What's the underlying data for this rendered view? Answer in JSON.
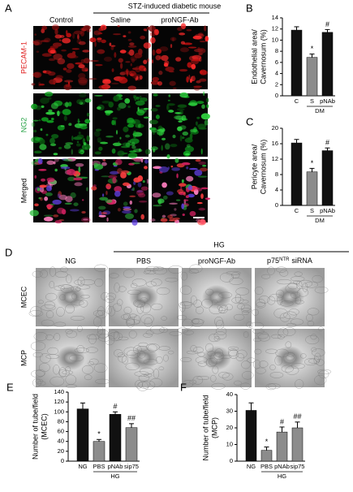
{
  "panel_a": {
    "label": "A",
    "group_header": "STZ-induced diabetic mouse",
    "columns": [
      "Control",
      "Saline",
      "proNGF-Ab"
    ],
    "rows": [
      "PECAM-1",
      "NG2",
      "Merged"
    ]
  },
  "panel_d": {
    "label": "D",
    "group_header": "HG",
    "columns": [
      "NG",
      "PBS",
      "proNGF-Ab"
    ],
    "last_column": {
      "base": "p75",
      "sup": "NTR",
      "rest": "siRNA"
    },
    "rows": [
      "MCEC",
      "MCP"
    ]
  },
  "chart_data": [
    {
      "type": "bar",
      "panel": "B",
      "ylabel": [
        "Endothelial area/",
        "Cavernosum (%)"
      ],
      "categories": [
        "C",
        "S",
        "pNAb"
      ],
      "values": [
        11.8,
        6.9,
        11.4
      ],
      "errors": [
        0.6,
        0.6,
        0.5
      ],
      "colors": [
        "#111111",
        "#8c8c8c",
        "#111111"
      ],
      "annotations": [
        null,
        "*",
        "#"
      ],
      "group_label": "DM",
      "ylim": [
        0,
        14
      ],
      "yticks": [
        0,
        2,
        4,
        6,
        8,
        10,
        12,
        14
      ]
    },
    {
      "type": "bar",
      "panel": "C",
      "ylabel": [
        "Pericyte area/",
        "Cavernosum (%)"
      ],
      "categories": [
        "C",
        "S",
        "pNAb"
      ],
      "values": [
        16.2,
        8.7,
        14.2
      ],
      "errors": [
        0.9,
        0.9,
        0.7
      ],
      "colors": [
        "#111111",
        "#8c8c8c",
        "#111111"
      ],
      "annotations": [
        null,
        "*",
        "#"
      ],
      "group_label": "DM",
      "ylim": [
        0,
        20
      ],
      "yticks": [
        0,
        4,
        8,
        12,
        16,
        20
      ]
    },
    {
      "type": "bar",
      "panel": "E",
      "ylabel": [
        "Number of tube/field",
        "(MCEC)"
      ],
      "categories": [
        "NG",
        "PBS",
        "pNAb",
        "sip75"
      ],
      "values": [
        106,
        40,
        95,
        68
      ],
      "errors": [
        12,
        4,
        5,
        8
      ],
      "colors": [
        "#111111",
        "#8c8c8c",
        "#111111",
        "#8c8c8c"
      ],
      "annotations": [
        null,
        "*",
        "#",
        "##"
      ],
      "group_label": "HG",
      "ylim": [
        0,
        140
      ],
      "yticks": [
        0,
        20,
        40,
        60,
        80,
        100,
        120,
        140
      ]
    },
    {
      "type": "bar",
      "panel": "F",
      "ylabel": [
        "Number of tube/field",
        "(MCP)"
      ],
      "categories": [
        "NG",
        "PBS",
        "pNAb",
        "sip75"
      ],
      "values": [
        30.5,
        6.5,
        17.5,
        20
      ],
      "errors": [
        4.5,
        2,
        3,
        3.5
      ],
      "colors": [
        "#111111",
        "#8c8c8c",
        "#8c8c8c",
        "#8c8c8c"
      ],
      "annotations": [
        null,
        "*",
        "#",
        "##"
      ],
      "group_label": "HG",
      "ylim": [
        0,
        40
      ],
      "yticks": [
        0,
        10,
        20,
        30,
        40
      ]
    }
  ]
}
